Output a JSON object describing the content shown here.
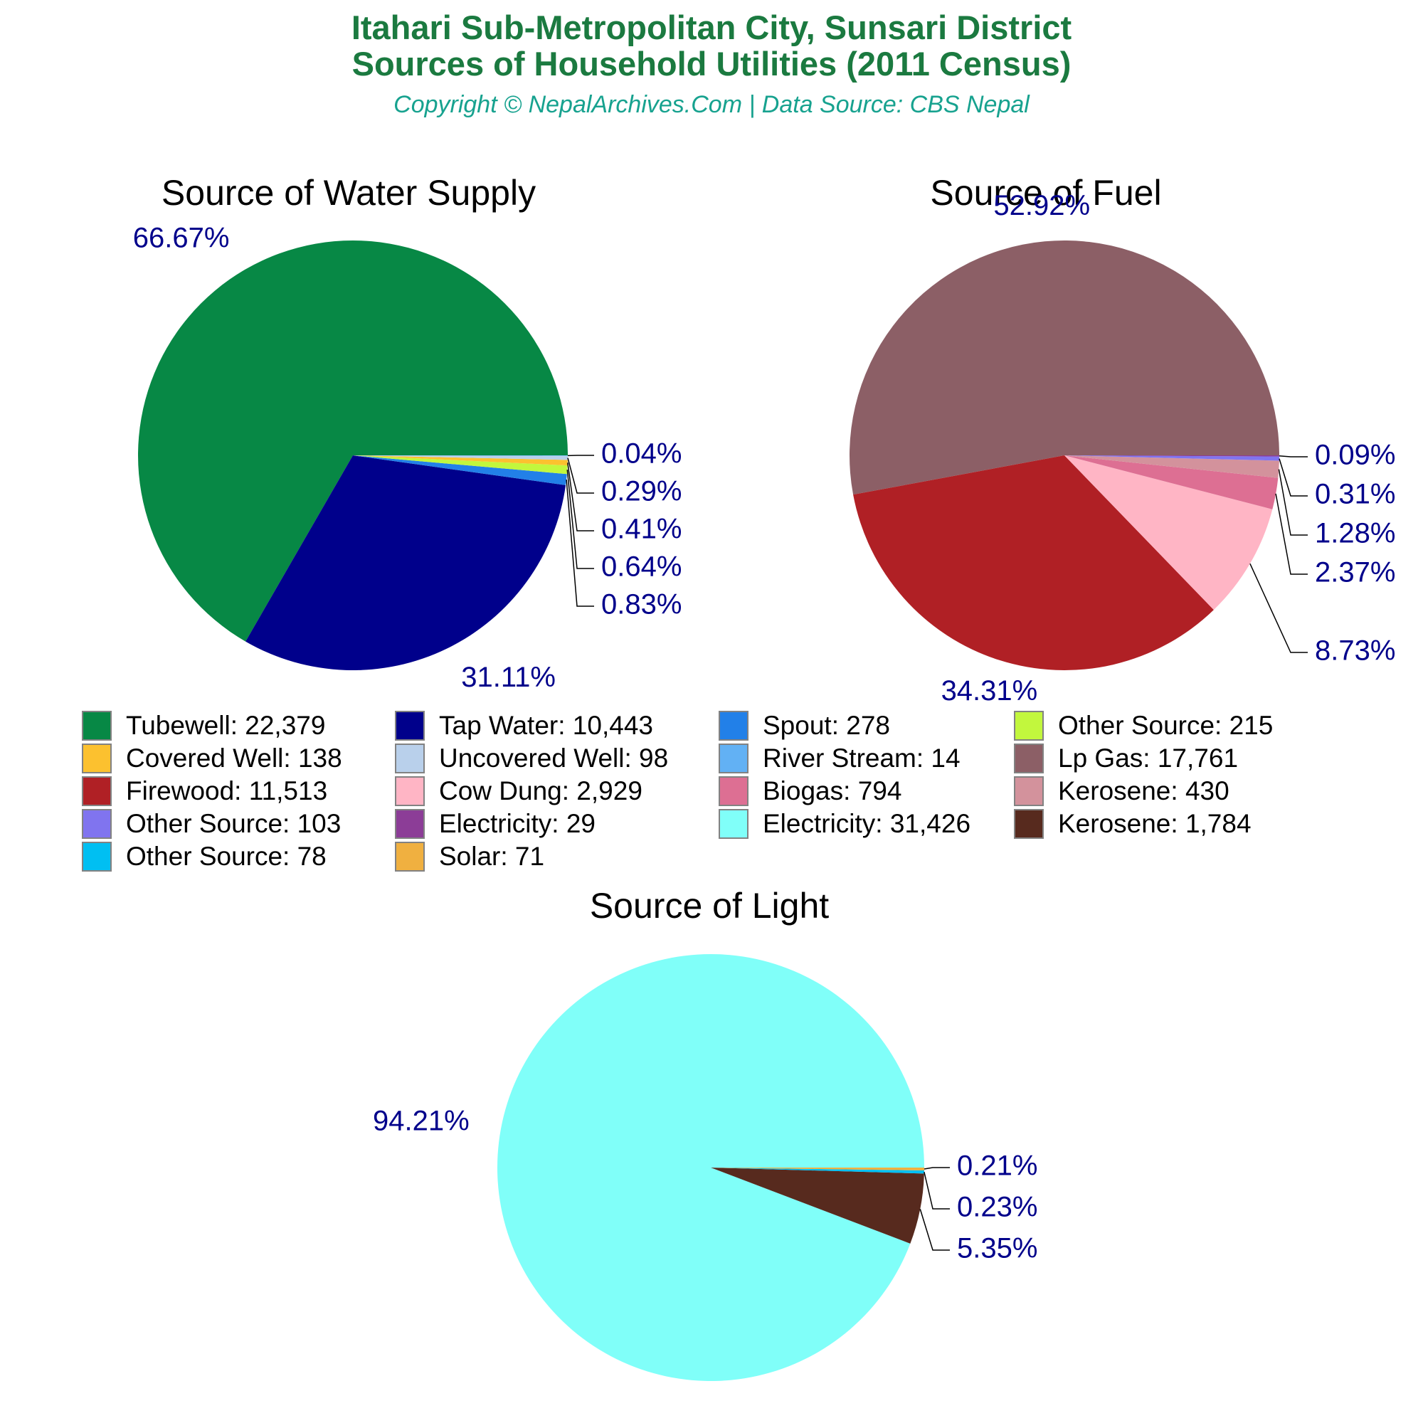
{
  "header": {
    "title_line1": "Itahari Sub-Metropolitan City, Sunsari District",
    "title_line2": "Sources of Household Utilities (2011 Census)",
    "subtitle": "Copyright © NepalArchives.Com | Data Source: CBS Nepal",
    "title_color": "#1B7A40",
    "subtitle_color": "#17A28F"
  },
  "label_color": "#00008B",
  "chart_data": [
    {
      "type": "pie",
      "id": "water",
      "title": "Source of Water Supply",
      "legend_position": "bottom",
      "slices": [
        {
          "label": "Tubewell",
          "value": 22379,
          "pct": "66.67%",
          "color": "#078845",
          "callout": false
        },
        {
          "label": "Tap Water",
          "value": 10443,
          "pct": "31.11%",
          "color": "#00008B",
          "callout": false
        },
        {
          "label": "Spout",
          "value": 278,
          "pct": "0.83%",
          "color": "#2280E8",
          "callout": true,
          "callout_row": 4
        },
        {
          "label": "Other Source",
          "value": 215,
          "pct": "0.64%",
          "color": "#C2F73D",
          "callout": true,
          "callout_row": 3
        },
        {
          "label": "Covered Well",
          "value": 138,
          "pct": "0.41%",
          "color": "#FCC12F",
          "callout": true,
          "callout_row": 2
        },
        {
          "label": "Uncovered Well",
          "value": 98,
          "pct": "0.29%",
          "color": "#B9D0EB",
          "callout": true,
          "callout_row": 1
        },
        {
          "label": "River Stream",
          "value": 14,
          "pct": "0.04%",
          "color": "#62B1F4",
          "callout": true,
          "callout_row": 0
        }
      ]
    },
    {
      "type": "pie",
      "id": "fuel",
      "title": "Source of Fuel",
      "legend_position": "bottom",
      "slices": [
        {
          "label": "Lp Gas",
          "value": 17761,
          "pct": "52.92%",
          "color": "#8C5F66",
          "callout": false
        },
        {
          "label": "Firewood",
          "value": 11513,
          "pct": "34.31%",
          "color": "#B02025",
          "callout": false
        },
        {
          "label": "Cow Dung",
          "value": 2929,
          "pct": "8.73%",
          "color": "#FFB5C5",
          "callout": true,
          "callout_row": 5
        },
        {
          "label": "Biogas",
          "value": 794,
          "pct": "2.37%",
          "color": "#DD6F93",
          "callout": true,
          "callout_row": 3
        },
        {
          "label": "Kerosene",
          "value": 430,
          "pct": "1.28%",
          "color": "#D3929C",
          "callout": true,
          "callout_row": 2
        },
        {
          "label": "Other Source",
          "value": 103,
          "pct": "0.31%",
          "color": "#8074EF",
          "callout": true,
          "callout_row": 1
        },
        {
          "label": "Electricity",
          "value": 29,
          "pct": "0.09%",
          "color": "#8C3D97",
          "callout": true,
          "callout_row": 0
        }
      ]
    },
    {
      "type": "pie",
      "id": "light",
      "title": "Source of Light",
      "legend_position": "bottom",
      "slices": [
        {
          "label": "Electricity",
          "value": 31426,
          "pct": "94.21%",
          "color": "#80FFF9",
          "callout": false
        },
        {
          "label": "Kerosene",
          "value": 1784,
          "pct": "5.35%",
          "color": "#572A1E",
          "callout": true,
          "callout_row": 2
        },
        {
          "label": "Other Source",
          "value": 78,
          "pct": "0.23%",
          "color": "#00BFF2",
          "callout": true,
          "callout_row": 1
        },
        {
          "label": "Solar",
          "value": 71,
          "pct": "0.21%",
          "color": "#F0B040",
          "callout": true,
          "callout_row": 0
        }
      ]
    }
  ],
  "legend": {
    "swatch_border": "#828282",
    "columns": [
      {
        "items": [
          {
            "label": "Tubewell",
            "value": "22,379",
            "color": "#078845"
          },
          {
            "label": "Covered Well",
            "value": "138",
            "color": "#FCC12F"
          },
          {
            "label": "Firewood",
            "value": "11,513",
            "color": "#B02025"
          },
          {
            "label": "Other Source",
            "value": "103",
            "color": "#8074EF"
          },
          {
            "label": "Other Source",
            "value": "78",
            "color": "#00BFF2"
          }
        ]
      },
      {
        "items": [
          {
            "label": "Tap Water",
            "value": "10,443",
            "color": "#00008B"
          },
          {
            "label": "Uncovered Well",
            "value": "98",
            "color": "#B9D0EB"
          },
          {
            "label": "Cow Dung",
            "value": "2,929",
            "color": "#FFB5C5"
          },
          {
            "label": "Electricity",
            "value": "29",
            "color": "#8C3D97"
          },
          {
            "label": "Solar",
            "value": "71",
            "color": "#F0B040"
          }
        ]
      },
      {
        "items": [
          {
            "label": "Spout",
            "value": "278",
            "color": "#2280E8"
          },
          {
            "label": "River Stream",
            "value": "14",
            "color": "#62B1F4"
          },
          {
            "label": "Biogas",
            "value": "794",
            "color": "#DD6F93"
          },
          {
            "label": "Electricity",
            "value": "31,426",
            "color": "#80FFF9"
          }
        ]
      },
      {
        "items": [
          {
            "label": "Other Source",
            "value": "215",
            "color": "#C2F73D"
          },
          {
            "label": "Lp Gas",
            "value": "17,761",
            "color": "#8C5F66"
          },
          {
            "label": "Kerosene",
            "value": "430",
            "color": "#D3929C"
          },
          {
            "label": "Kerosene",
            "value": "1,784",
            "color": "#572A1E"
          }
        ]
      }
    ]
  }
}
